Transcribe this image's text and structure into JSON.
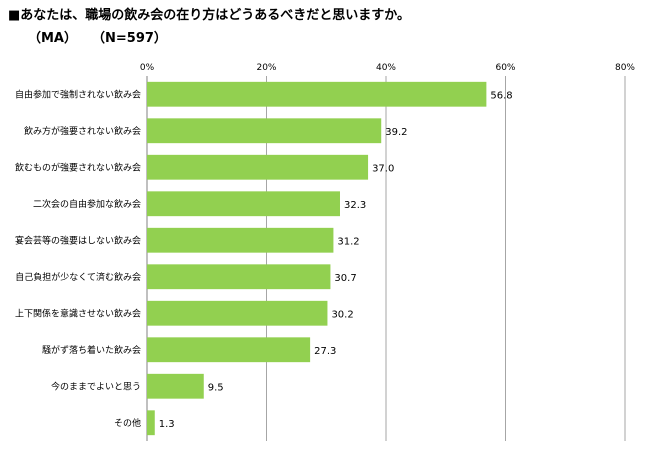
{
  "title": "■あなたは、職場の飲み会の在り方はどうあるべきだと思いますか。",
  "subtitle_ma": "（MA）",
  "subtitle_n": "（N=597）",
  "colors": {
    "bar": "#92d050",
    "grid": "#a6a6a6",
    "axis": "#808080"
  },
  "chart_data": {
    "type": "bar",
    "orientation": "horizontal",
    "categories": [
      "自由参加で強制されない飲み会",
      "飲み方が強要されない飲み会",
      "飲むものが強要されない飲み会",
      "二次会の自由参加な飲み会",
      "宴会芸等の強要はしない飲み会",
      "自己負担が少なくて済む飲み会",
      "上下関係を意識させない飲み会",
      "騒がず落ち着いた飲み会",
      "今のままでよいと思う",
      "その他"
    ],
    "values": [
      56.8,
      39.2,
      37.0,
      32.3,
      31.2,
      30.7,
      30.2,
      27.3,
      9.5,
      1.3
    ],
    "value_labels": [
      "56.8",
      "39.2",
      "37.0",
      "32.3",
      "31.2",
      "30.7",
      "30.2",
      "27.3",
      "9.5",
      "1.3"
    ],
    "xlim": [
      0,
      80
    ],
    "xticks": [
      0,
      20,
      40,
      60,
      80
    ],
    "xtick_labels": [
      "0%",
      "20%",
      "40%",
      "60%",
      "80%"
    ],
    "grid": true,
    "xaxis_position": "top"
  }
}
